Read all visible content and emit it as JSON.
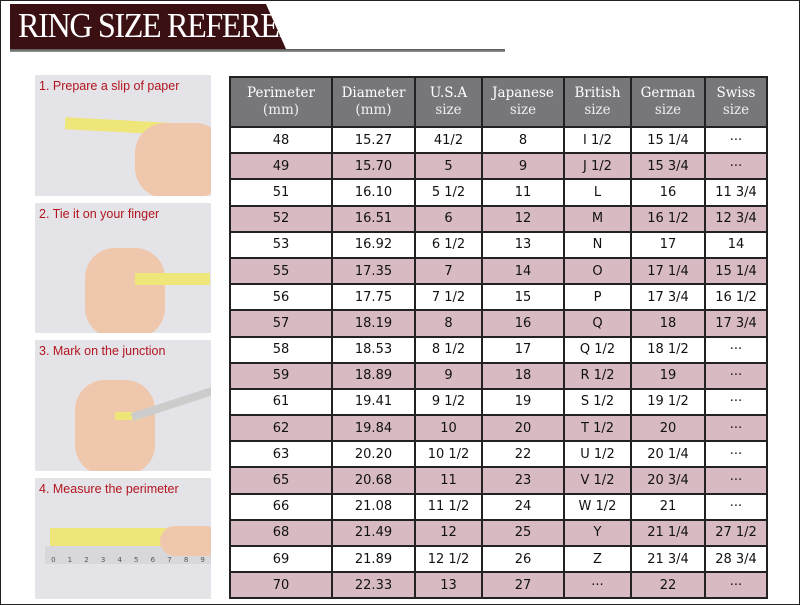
{
  "title": "RING SIZE REFERENCE",
  "steps": [
    {
      "label": "1. Prepare a slip of paper"
    },
    {
      "label": "2. Tie it on your finger"
    },
    {
      "label": "3. Mark on the junction"
    },
    {
      "label": "4. Measure the perimeter"
    }
  ],
  "ruler_ticks": [
    "0",
    "1",
    "2",
    "3",
    "4",
    "5",
    "6",
    "7",
    "8",
    "9"
  ],
  "table": {
    "headers": [
      {
        "top": "Perimeter",
        "bottom": "(mm)"
      },
      {
        "top": "Diameter",
        "bottom": "(mm)"
      },
      {
        "top": "U.S.A",
        "bottom": "size"
      },
      {
        "top": "Japanese",
        "bottom": "size"
      },
      {
        "top": "British",
        "bottom": "size"
      },
      {
        "top": "German",
        "bottom": "size"
      },
      {
        "top": "Swiss",
        "bottom": "size"
      }
    ],
    "rows": [
      [
        "48",
        "15.27",
        "41/2",
        "8",
        "I 1/2",
        "15 1/4",
        "···"
      ],
      [
        "49",
        "15.70",
        "5",
        "9",
        "J 1/2",
        "15 3/4",
        "···"
      ],
      [
        "51",
        "16.10",
        "5 1/2",
        "11",
        "L",
        "16",
        "11 3/4"
      ],
      [
        "52",
        "16.51",
        "6",
        "12",
        "M",
        "16 1/2",
        "12 3/4"
      ],
      [
        "53",
        "16.92",
        "6 1/2",
        "13",
        "N",
        "17",
        "14"
      ],
      [
        "55",
        "17.35",
        "7",
        "14",
        "O",
        "17 1/4",
        "15 1/4"
      ],
      [
        "56",
        "17.75",
        "7 1/2",
        "15",
        "P",
        "17 3/4",
        "16 1/2"
      ],
      [
        "57",
        "18.19",
        "8",
        "16",
        "Q",
        "18",
        "17 3/4"
      ],
      [
        "58",
        "18.53",
        "8 1/2",
        "17",
        "Q  1/2",
        "18 1/2",
        "···"
      ],
      [
        "59",
        "18.89",
        "9",
        "18",
        "R 1/2",
        "19",
        "···"
      ],
      [
        "61",
        "19.41",
        "9 1/2",
        "19",
        "S 1/2",
        "19 1/2",
        "···"
      ],
      [
        "62",
        "19.84",
        "10",
        "20",
        "T 1/2",
        "20",
        "···"
      ],
      [
        "63",
        "20.20",
        "10 1/2",
        "22",
        "U 1/2",
        "20 1/4",
        "···"
      ],
      [
        "65",
        "20.68",
        "11",
        "23",
        "V 1/2",
        "20 3/4",
        "···"
      ],
      [
        "66",
        "21.08",
        "11 1/2",
        "24",
        "W 1/2",
        "21",
        "···"
      ],
      [
        "68",
        "21.49",
        "12",
        "25",
        "Y",
        "21 1/4",
        "27 1/2"
      ],
      [
        "69",
        "21.89",
        "12 1/2",
        "26",
        "Z",
        "21 3/4",
        "28 3/4"
      ],
      [
        "70",
        "22.33",
        "13",
        "27",
        "···",
        "22",
        "···"
      ]
    ]
  },
  "colors": {
    "banner": "#3b1013",
    "header": "#77767b",
    "row_alt": "#d8bbc2",
    "step_label": "#b3151f"
  }
}
